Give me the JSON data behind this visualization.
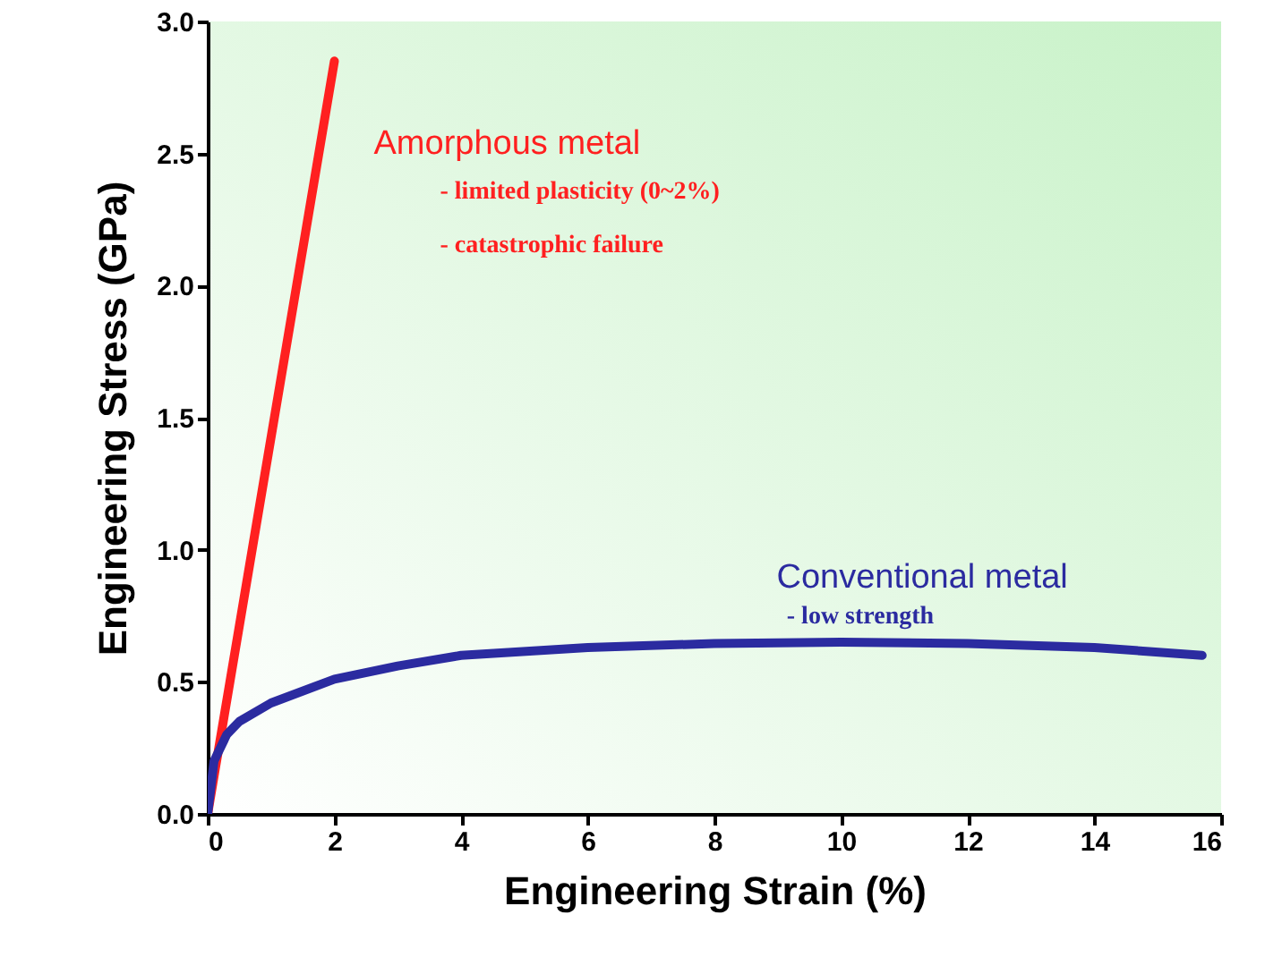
{
  "chart_data": {
    "type": "line",
    "xlabel": "Engineering Strain (%)",
    "ylabel": "Engineering Stress (GPa)",
    "xlim": [
      0,
      16
    ],
    "xticks": [
      0,
      2,
      4,
      6,
      8,
      10,
      12,
      14,
      16
    ],
    "ylim": [
      0,
      3
    ],
    "yticks": [
      {
        "value": 0,
        "label": "0.0"
      },
      {
        "value": 0.5,
        "label": "0.5"
      },
      {
        "value": 1,
        "label": "1.0"
      },
      {
        "value": 1.5,
        "label": "1.5"
      },
      {
        "value": 2,
        "label": "2.0"
      },
      {
        "value": 2.5,
        "label": "2.5"
      },
      {
        "value": 3,
        "label": "3.0"
      }
    ],
    "grid": false,
    "marker": "none",
    "line_style": "solid",
    "series": [
      {
        "name": "Amorphous metal",
        "color": "#ff2020",
        "x": [
          0,
          2
        ],
        "values": [
          0,
          2.85
        ]
      },
      {
        "name": "Conventional metal",
        "color": "#2b2ba0",
        "x": [
          0,
          0.1,
          0.3,
          0.5,
          1,
          2,
          3,
          4,
          6,
          8,
          10,
          12,
          14,
          15.7
        ],
        "values": [
          0,
          0.2,
          0.3,
          0.35,
          0.42,
          0.51,
          0.56,
          0.6,
          0.63,
          0.645,
          0.65,
          0.645,
          0.63,
          0.6
        ]
      }
    ],
    "annotations": [
      "- limited plasticity (0~2%)",
      "- catastrophic failure",
      "- low strength"
    ]
  }
}
